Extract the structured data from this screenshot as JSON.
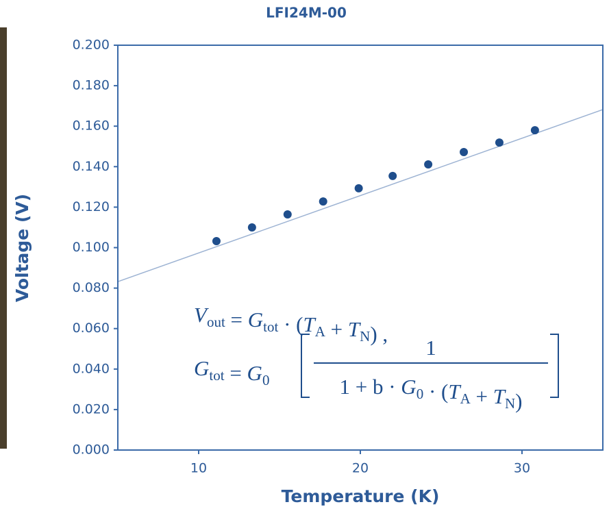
{
  "chart_data": {
    "type": "scatter",
    "title": "LFI24M-00",
    "x_label": "Temperature (K)",
    "y_label": "Voltage (V)",
    "x": [
      11.1,
      13.3,
      15.5,
      17.7,
      19.9,
      22.0,
      24.2,
      26.4,
      28.6,
      30.8
    ],
    "values": [
      0.1032,
      0.11,
      0.1164,
      0.1228,
      0.1293,
      0.1354,
      0.1411,
      0.1472,
      0.1519,
      0.158
    ],
    "color": "#1f4e8c",
    "fit_line": {
      "x": [
        5,
        35
      ],
      "values": [
        0.0832,
        0.1682
      ],
      "color": "#9db3d3"
    },
    "xlim": [
      5,
      35
    ],
    "xticks": [
      10,
      20,
      30
    ],
    "ylim": [
      0,
      0.2
    ],
    "yticks": [
      {
        "value": 0,
        "label": "0.000"
      },
      {
        "value": 0.02,
        "label": "0.020"
      },
      {
        "value": 0.04,
        "label": "0.040"
      },
      {
        "value": 0.06,
        "label": "0.060"
      },
      {
        "value": 0.08,
        "label": "0.080"
      },
      {
        "value": 0.1,
        "label": "0.100"
      },
      {
        "value": 0.12,
        "label": "0.120"
      },
      {
        "value": 0.14,
        "label": "0.140"
      },
      {
        "value": 0.16,
        "label": "0.160"
      },
      {
        "value": 0.18,
        "label": "0.180"
      },
      {
        "value": 0.2,
        "label": "0.200"
      }
    ],
    "formula": {
      "line1": [
        {
          "t": "V",
          "s": "out"
        },
        {
          "t": " = "
        },
        {
          "t": "G",
          "s": "tot"
        },
        {
          "t": " · ("
        },
        {
          "t": "T",
          "s": "A"
        },
        {
          "t": " + "
        },
        {
          "t": "T",
          "s": "N"
        },
        {
          "t": ") ,"
        }
      ],
      "line2": [
        {
          "t": "G",
          "s": "tot"
        },
        {
          "t": " = "
        },
        {
          "t": "G",
          "s": "0"
        }
      ],
      "numerator": [
        {
          "t": "1"
        }
      ],
      "denominator": [
        {
          "t": "1 + b · "
        },
        {
          "t": "G",
          "s": "0"
        },
        {
          "t": " · ("
        },
        {
          "t": "T",
          "s": "A"
        },
        {
          "t": " + "
        },
        {
          "t": "T",
          "s": "N"
        },
        {
          "t": ")"
        }
      ]
    }
  }
}
